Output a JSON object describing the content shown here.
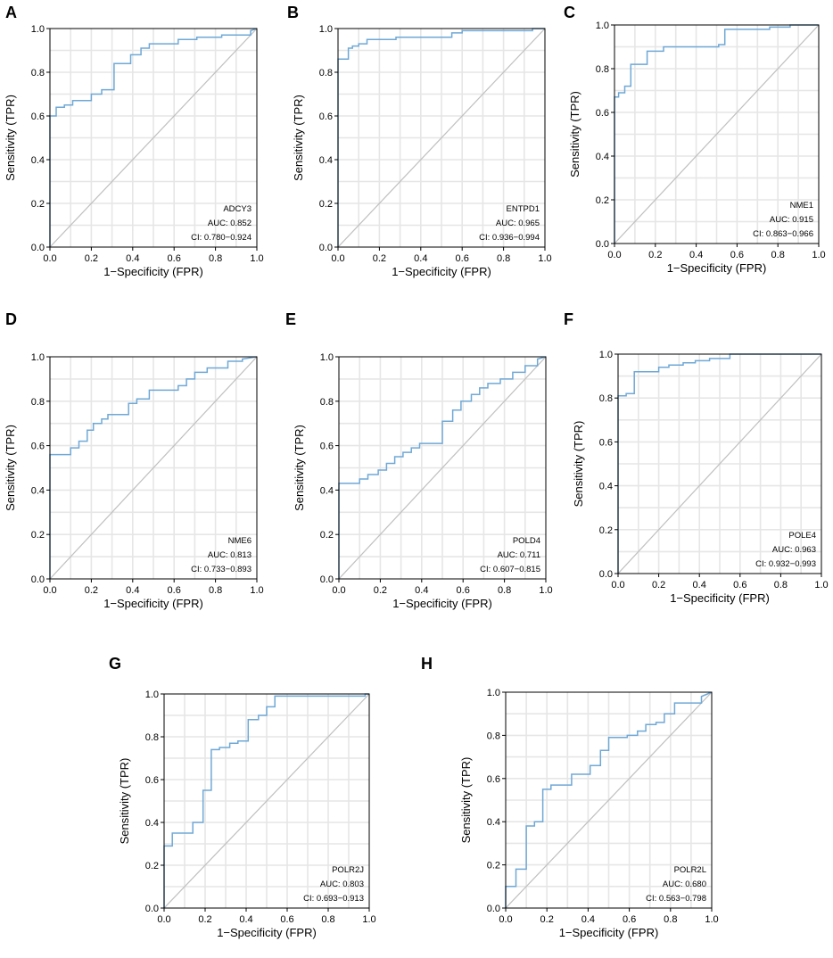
{
  "chart_data": [
    {
      "type": "line",
      "panel": "A",
      "gene": "ADCY3",
      "auc": "AUC: 0.852",
      "ci": "CI: 0.780−0.924",
      "xlabel": "1−Specificity (FPR)",
      "ylabel": "Sensitivity (TPR)",
      "xlim": [
        0,
        1
      ],
      "ylim": [
        0,
        1
      ],
      "ticks": [
        "0.0",
        "0.2",
        "0.4",
        "0.6",
        "0.8",
        "1.0"
      ],
      "roc_x": [
        0,
        0,
        0.03,
        0.03,
        0.07,
        0.07,
        0.11,
        0.11,
        0.2,
        0.2,
        0.25,
        0.25,
        0.31,
        0.31,
        0.39,
        0.39,
        0.44,
        0.44,
        0.48,
        0.48,
        0.62,
        0.62,
        0.71,
        0.71,
        0.83,
        0.83,
        0.97,
        0.97,
        1
      ],
      "roc_y": [
        0,
        0.6,
        0.6,
        0.64,
        0.64,
        0.65,
        0.65,
        0.67,
        0.67,
        0.7,
        0.7,
        0.72,
        0.72,
        0.84,
        0.84,
        0.88,
        0.88,
        0.91,
        0.91,
        0.93,
        0.93,
        0.95,
        0.95,
        0.96,
        0.96,
        0.97,
        0.97,
        0.99,
        1
      ]
    },
    {
      "type": "line",
      "panel": "B",
      "gene": "ENTPD1",
      "auc": "AUC: 0.965",
      "ci": "CI: 0.936−0.994",
      "xlabel": "1−Specificity (FPR)",
      "ylabel": "Sensitivity (TPR)",
      "xlim": [
        0,
        1
      ],
      "ylim": [
        0,
        1
      ],
      "ticks": [
        "0.0",
        "0.2",
        "0.4",
        "0.6",
        "0.8",
        "1.0"
      ],
      "roc_x": [
        0,
        0,
        0.05,
        0.05,
        0.07,
        0.07,
        0.1,
        0.1,
        0.14,
        0.14,
        0.28,
        0.28,
        0.55,
        0.55,
        0.6,
        0.6,
        0.79,
        0.79,
        0.94,
        0.94,
        1
      ],
      "roc_y": [
        0,
        0.86,
        0.86,
        0.91,
        0.91,
        0.92,
        0.92,
        0.93,
        0.93,
        0.95,
        0.95,
        0.96,
        0.96,
        0.98,
        0.98,
        0.99,
        0.99,
        0.99,
        0.99,
        1,
        1
      ]
    },
    {
      "type": "line",
      "panel": "C",
      "gene": "NME1",
      "auc": "AUC: 0.915",
      "ci": "CI: 0.863−0.966",
      "xlabel": "1−Specificity (FPR)",
      "ylabel": "Sensitivity (TPR)",
      "xlim": [
        0,
        1
      ],
      "ylim": [
        0,
        1
      ],
      "ticks": [
        "0.0",
        "0.2",
        "0.4",
        "0.6",
        "0.8",
        "1.0"
      ],
      "roc_x": [
        0,
        0,
        0.02,
        0.02,
        0.05,
        0.05,
        0.08,
        0.08,
        0.11,
        0.11,
        0.16,
        0.16,
        0.24,
        0.24,
        0.51,
        0.51,
        0.54,
        0.54,
        0.76,
        0.76,
        0.86,
        0.86,
        1
      ],
      "roc_y": [
        0,
        0.67,
        0.67,
        0.69,
        0.69,
        0.72,
        0.72,
        0.82,
        0.82,
        0.82,
        0.82,
        0.88,
        0.88,
        0.9,
        0.9,
        0.91,
        0.91,
        0.98,
        0.98,
        0.99,
        0.99,
        1,
        1
      ]
    },
    {
      "type": "line",
      "panel": "D",
      "gene": "NME6",
      "auc": "AUC: 0.813",
      "ci": "CI: 0.733−0.893",
      "xlabel": "1−Specificity (FPR)",
      "ylabel": "Sensitivity (TPR)",
      "xlim": [
        0,
        1
      ],
      "ylim": [
        0,
        1
      ],
      "ticks": [
        "0.0",
        "0.2",
        "0.4",
        "0.6",
        "0.8",
        "1.0"
      ],
      "roc_x": [
        0,
        0,
        0.1,
        0.1,
        0.14,
        0.14,
        0.18,
        0.18,
        0.21,
        0.21,
        0.25,
        0.25,
        0.28,
        0.28,
        0.38,
        0.38,
        0.42,
        0.42,
        0.48,
        0.48,
        0.62,
        0.62,
        0.66,
        0.66,
        0.7,
        0.7,
        0.76,
        0.76,
        0.86,
        0.86,
        0.93,
        0.93,
        1
      ],
      "roc_y": [
        0,
        0.56,
        0.56,
        0.59,
        0.59,
        0.62,
        0.62,
        0.67,
        0.67,
        0.7,
        0.7,
        0.72,
        0.72,
        0.74,
        0.74,
        0.79,
        0.79,
        0.81,
        0.81,
        0.85,
        0.85,
        0.87,
        0.87,
        0.9,
        0.9,
        0.93,
        0.93,
        0.95,
        0.95,
        0.98,
        0.98,
        0.99,
        1
      ]
    },
    {
      "type": "line",
      "panel": "E",
      "gene": "POLD4",
      "auc": "AUC: 0.711",
      "ci": "CI: 0.607−0.815",
      "xlabel": "1−Specificity (FPR)",
      "ylabel": "Sensitivity (TPR)",
      "xlim": [
        0,
        1
      ],
      "ylim": [
        0,
        1
      ],
      "ticks": [
        "0.0",
        "0.2",
        "0.4",
        "0.6",
        "0.8",
        "1.0"
      ],
      "roc_x": [
        0,
        0,
        0.1,
        0.1,
        0.14,
        0.14,
        0.19,
        0.19,
        0.23,
        0.23,
        0.27,
        0.27,
        0.31,
        0.31,
        0.35,
        0.35,
        0.39,
        0.39,
        0.5,
        0.5,
        0.55,
        0.55,
        0.59,
        0.59,
        0.64,
        0.64,
        0.68,
        0.68,
        0.72,
        0.72,
        0.78,
        0.78,
        0.84,
        0.84,
        0.9,
        0.9,
        0.96,
        0.96,
        1
      ],
      "roc_y": [
        0,
        0.43,
        0.43,
        0.45,
        0.45,
        0.47,
        0.47,
        0.49,
        0.49,
        0.52,
        0.52,
        0.55,
        0.55,
        0.57,
        0.57,
        0.59,
        0.59,
        0.61,
        0.61,
        0.71,
        0.71,
        0.76,
        0.76,
        0.8,
        0.8,
        0.83,
        0.83,
        0.86,
        0.86,
        0.88,
        0.88,
        0.9,
        0.9,
        0.93,
        0.93,
        0.96,
        0.96,
        0.99,
        1
      ]
    },
    {
      "type": "line",
      "panel": "F",
      "gene": "POLE4",
      "auc": "AUC: 0.963",
      "ci": "CI: 0.932−0.993",
      "xlabel": "1−Specificity (FPR)",
      "ylabel": "Sensitivity (TPR)",
      "xlim": [
        0,
        1
      ],
      "ylim": [
        0,
        1
      ],
      "ticks": [
        "0.0",
        "0.2",
        "0.4",
        "0.6",
        "0.8",
        "1.0"
      ],
      "roc_x": [
        0,
        0,
        0.04,
        0.04,
        0.08,
        0.08,
        0.2,
        0.2,
        0.25,
        0.25,
        0.32,
        0.32,
        0.38,
        0.38,
        0.45,
        0.45,
        0.55,
        0.55,
        1
      ],
      "roc_y": [
        0,
        0.81,
        0.81,
        0.82,
        0.82,
        0.92,
        0.92,
        0.94,
        0.94,
        0.95,
        0.95,
        0.96,
        0.96,
        0.97,
        0.97,
        0.98,
        0.98,
        1,
        1
      ]
    },
    {
      "type": "line",
      "panel": "G",
      "gene": "POLR2J",
      "auc": "AUC: 0.803",
      "ci": "CI: 0.693−0.913",
      "xlabel": "1−Specificity (FPR)",
      "ylabel": "Sensitivity (TPR)",
      "xlim": [
        0,
        1
      ],
      "ylim": [
        0,
        1
      ],
      "ticks": [
        "0.0",
        "0.2",
        "0.4",
        "0.6",
        "0.8",
        "1.0"
      ],
      "roc_x": [
        0,
        0,
        0.04,
        0.04,
        0.14,
        0.14,
        0.19,
        0.19,
        0.23,
        0.23,
        0.27,
        0.27,
        0.32,
        0.32,
        0.36,
        0.36,
        0.41,
        0.41,
        0.46,
        0.46,
        0.5,
        0.5,
        0.54,
        0.54,
        0.98,
        0.98,
        1
      ],
      "roc_y": [
        0,
        0.29,
        0.29,
        0.35,
        0.35,
        0.4,
        0.4,
        0.55,
        0.55,
        0.74,
        0.74,
        0.75,
        0.75,
        0.77,
        0.77,
        0.78,
        0.78,
        0.88,
        0.88,
        0.9,
        0.9,
        0.94,
        0.94,
        0.99,
        0.99,
        1,
        1
      ]
    },
    {
      "type": "line",
      "panel": "H",
      "gene": "POLR2L",
      "auc": "AUC: 0.680",
      "ci": "CI: 0.563−0.798",
      "xlabel": "1−Specificity (FPR)",
      "ylabel": "Sensitivity (TPR)",
      "xlim": [
        0,
        1
      ],
      "ylim": [
        0,
        1
      ],
      "ticks": [
        "0.0",
        "0.2",
        "0.4",
        "0.6",
        "0.8",
        "1.0"
      ],
      "roc_x": [
        0,
        0,
        0.05,
        0.05,
        0.1,
        0.1,
        0.14,
        0.14,
        0.18,
        0.18,
        0.22,
        0.22,
        0.32,
        0.32,
        0.41,
        0.41,
        0.46,
        0.46,
        0.5,
        0.5,
        0.59,
        0.59,
        0.64,
        0.64,
        0.68,
        0.68,
        0.73,
        0.73,
        0.77,
        0.77,
        0.82,
        0.82,
        0.95,
        0.95,
        1
      ],
      "roc_y": [
        0,
        0.1,
        0.1,
        0.18,
        0.18,
        0.38,
        0.38,
        0.4,
        0.4,
        0.55,
        0.55,
        0.57,
        0.57,
        0.62,
        0.62,
        0.66,
        0.66,
        0.73,
        0.73,
        0.79,
        0.79,
        0.8,
        0.8,
        0.82,
        0.82,
        0.85,
        0.85,
        0.86,
        0.86,
        0.9,
        0.9,
        0.95,
        0.95,
        0.98,
        1
      ]
    }
  ]
}
